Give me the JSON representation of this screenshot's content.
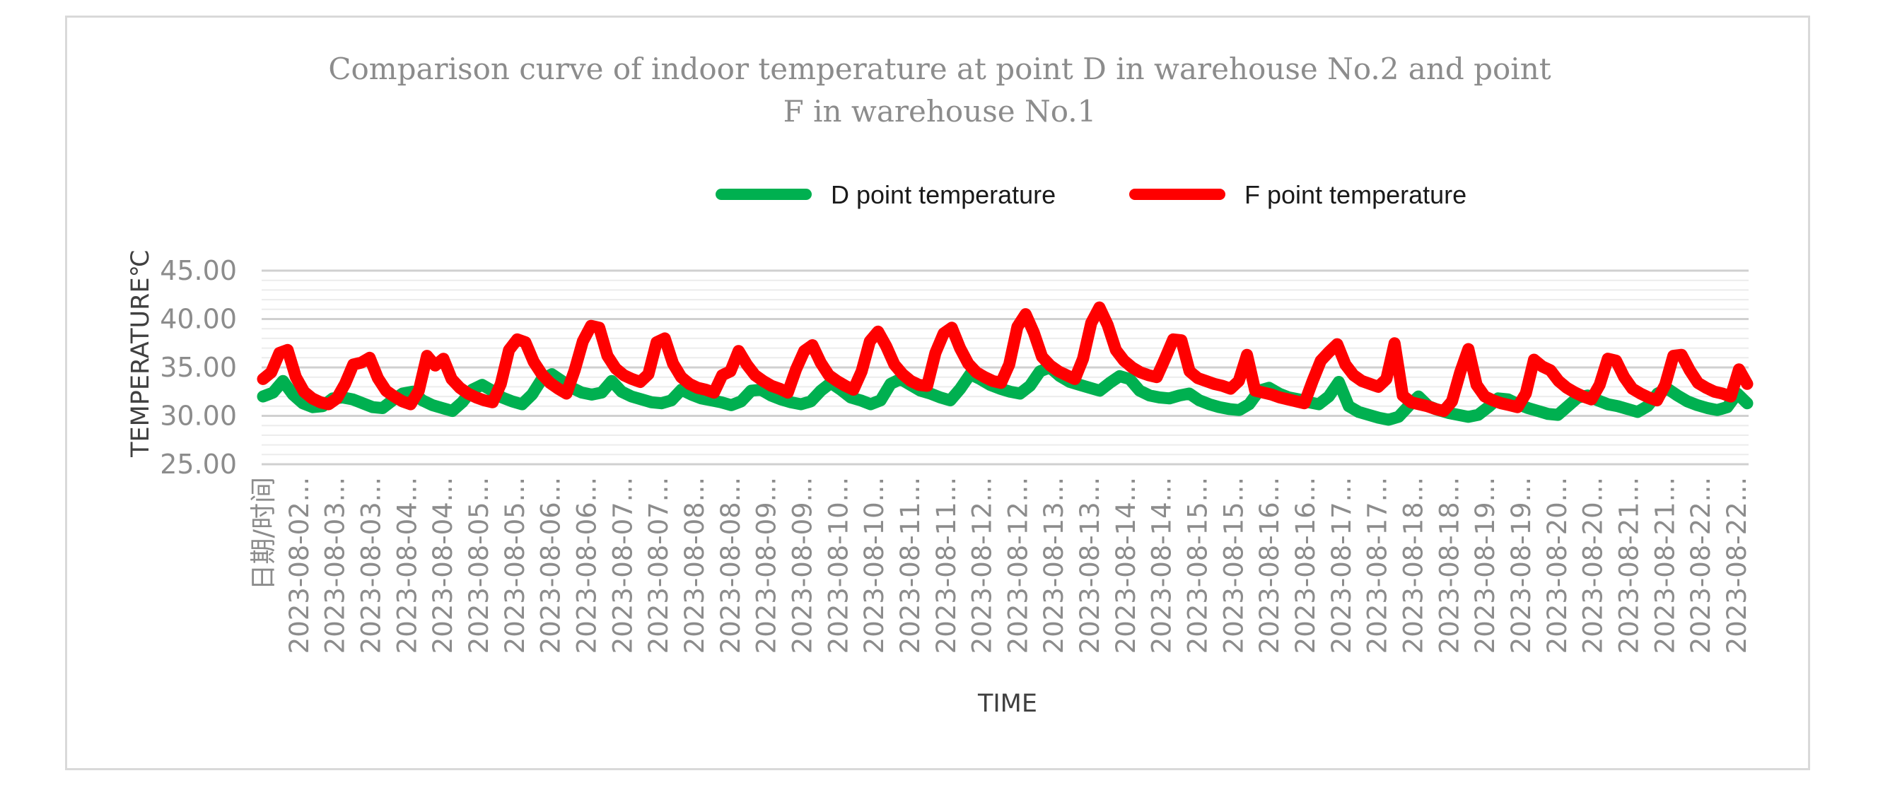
{
  "chart_data": {
    "type": "line",
    "title": "Comparison curve of indoor temperature at point D in warehouse No.2 and point F in warehouse No.1",
    "title_lines": [
      "Comparison curve of indoor temperature at point D in warehouse No.2 and point",
      "F in warehouse No.1"
    ],
    "xlabel": "TIME",
    "ylabel": "TEMPERATURE℃",
    "ylim": [
      25,
      45
    ],
    "yticks": [
      "45.00",
      "40.00",
      "35.00",
      "30.00",
      "25.00"
    ],
    "ytick_values": [
      45,
      40,
      35,
      30,
      25
    ],
    "minor_step": 1,
    "grid": true,
    "legend_position": "top",
    "x_tick_labels": [
      "日期/时间",
      "2023-08-02...",
      "2023-08-03...",
      "2023-08-03...",
      "2023-08-04...",
      "2023-08-04...",
      "2023-08-05...",
      "2023-08-05...",
      "2023-08-06...",
      "2023-08-06...",
      "2023-08-07...",
      "2023-08-07...",
      "2023-08-08...",
      "2023-08-08...",
      "2023-08-09...",
      "2023-08-09...",
      "2023-08-10...",
      "2023-08-10...",
      "2023-08-11...",
      "2023-08-11...",
      "2023-08-12...",
      "2023-08-12...",
      "2023-08-13...",
      "2023-08-13...",
      "2023-08-14...",
      "2023-08-14...",
      "2023-08-15...",
      "2023-08-15...",
      "2023-08-16...",
      "2023-08-16...",
      "2023-08-17...",
      "2023-08-17...",
      "2023-08-18...",
      "2023-08-18...",
      "2023-08-19...",
      "2023-08-19...",
      "2023-08-20...",
      "2023-08-20...",
      "2023-08-21...",
      "2023-08-21...",
      "2023-08-22...",
      "2023-08-22..."
    ],
    "series": [
      {
        "name": "D point temperature",
        "color": "#00b050",
        "values": [
          32.0,
          32.4,
          33.6,
          32.2,
          31.3,
          30.9,
          31.0,
          31.8,
          31.9,
          31.7,
          31.3,
          30.9,
          30.8,
          31.6,
          32.3,
          32.5,
          31.6,
          31.1,
          30.8,
          30.5,
          31.4,
          32.7,
          33.2,
          32.6,
          31.9,
          31.5,
          31.2,
          32.2,
          33.8,
          34.3,
          33.6,
          32.9,
          32.4,
          32.2,
          32.4,
          33.6,
          32.5,
          32.0,
          31.7,
          31.4,
          31.3,
          31.6,
          32.7,
          32.2,
          31.8,
          31.6,
          31.4,
          31.1,
          31.5,
          32.6,
          32.7,
          32.1,
          31.7,
          31.4,
          31.2,
          31.5,
          32.6,
          33.4,
          32.7,
          31.9,
          31.6,
          31.2,
          31.6,
          33.3,
          33.8,
          33.2,
          32.6,
          32.3,
          31.9,
          31.6,
          32.8,
          34.3,
          33.8,
          33.2,
          32.8,
          32.5,
          32.3,
          33.1,
          34.6,
          35.0,
          34.1,
          33.5,
          33.2,
          32.9,
          32.6,
          33.4,
          34.1,
          33.8,
          32.6,
          32.1,
          31.9,
          31.8,
          32.1,
          32.3,
          31.6,
          31.2,
          30.9,
          30.7,
          30.6,
          31.2,
          32.6,
          32.9,
          32.3,
          31.9,
          31.7,
          31.4,
          31.2,
          32.0,
          33.5,
          31.0,
          30.4,
          30.1,
          29.8,
          29.6,
          29.9,
          31.0,
          32.0,
          31.0,
          30.6,
          30.3,
          30.1,
          29.9,
          30.1,
          30.9,
          31.8,
          31.7,
          31.2,
          30.8,
          30.5,
          30.2,
          30.1,
          31.0,
          31.9,
          32.1,
          31.6,
          31.2,
          31.0,
          30.7,
          30.4,
          31.0,
          32.3,
          32.8,
          32.1,
          31.5,
          31.1,
          30.8,
          30.6,
          30.9,
          32.3,
          31.3
        ]
      },
      {
        "name": "F point temperature",
        "color": "#ff0000",
        "values": [
          33.8,
          34.5,
          36.5,
          36.8,
          34.0,
          32.5,
          31.8,
          31.4,
          31.2,
          31.8,
          33.3,
          35.3,
          35.5,
          36.0,
          33.9,
          32.6,
          32.0,
          31.5,
          31.2,
          32.6,
          36.2,
          35.2,
          35.9,
          33.8,
          32.9,
          32.3,
          31.9,
          31.6,
          31.4,
          33.3,
          36.8,
          37.9,
          37.6,
          35.6,
          34.3,
          33.4,
          32.8,
          32.3,
          34.7,
          37.7,
          39.3,
          39.1,
          36.2,
          34.9,
          34.2,
          33.8,
          33.5,
          34.3,
          37.6,
          38.0,
          35.4,
          34.0,
          33.3,
          32.9,
          32.7,
          32.4,
          34.2,
          34.6,
          36.7,
          35.3,
          34.2,
          33.6,
          33.1,
          32.8,
          32.4,
          34.8,
          36.7,
          37.3,
          35.5,
          34.2,
          33.6,
          33.1,
          32.7,
          34.6,
          37.7,
          38.7,
          37.2,
          35.3,
          34.3,
          33.6,
          33.2,
          33.1,
          36.5,
          38.5,
          39.1,
          37.0,
          35.4,
          34.5,
          34.0,
          33.6,
          33.4,
          35.3,
          39.2,
          40.5,
          38.6,
          36.1,
          35.2,
          34.6,
          34.2,
          33.8,
          35.9,
          39.6,
          41.2,
          39.4,
          36.8,
          35.7,
          35.0,
          34.5,
          34.2,
          34.0,
          35.9,
          37.9,
          37.8,
          34.6,
          33.9,
          33.6,
          33.3,
          33.1,
          32.8,
          33.6,
          36.3,
          32.6,
          32.4,
          32.2,
          31.9,
          31.7,
          31.5,
          31.3,
          33.6,
          35.7,
          36.6,
          37.4,
          35.3,
          34.2,
          33.6,
          33.3,
          33.0,
          33.8,
          37.5,
          32.1,
          31.4,
          31.2,
          31.0,
          30.7,
          30.5,
          31.5,
          34.5,
          36.9,
          33.2,
          32.0,
          31.6,
          31.3,
          31.1,
          30.9,
          32.3,
          35.8,
          35.1,
          34.7,
          33.6,
          32.9,
          32.4,
          32.0,
          31.7,
          33.2,
          35.9,
          35.7,
          34.0,
          32.8,
          32.3,
          31.9,
          31.6,
          33.2,
          36.2,
          36.3,
          34.7,
          33.4,
          32.9,
          32.5,
          32.3,
          32.0,
          34.8,
          33.3
        ]
      }
    ]
  }
}
